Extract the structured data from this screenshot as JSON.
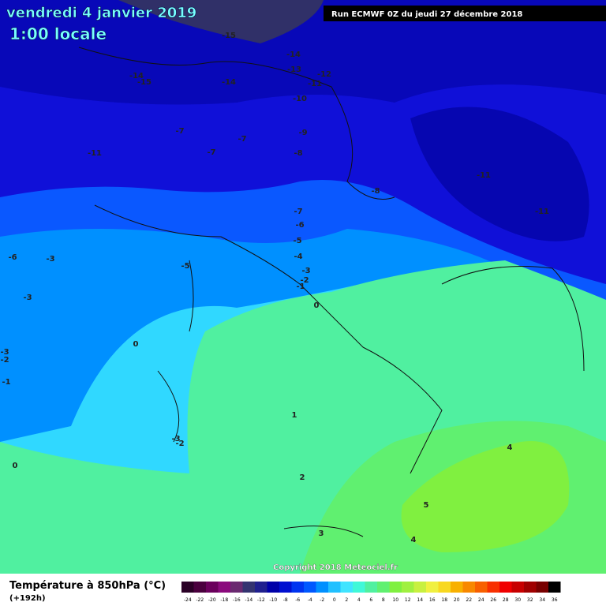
{
  "header": {
    "title": "vendredi 4 janvier 2019",
    "time": "1:00 locale",
    "run": "Run ECMWF 0Z du jeudi 27 décembre 2018"
  },
  "contour_labels": [
    -15,
    -14,
    -13,
    -12,
    -11,
    -14,
    -14,
    -15,
    -10,
    -9,
    -8,
    -7,
    -7,
    -7,
    -11,
    -11,
    -11,
    -8,
    -7,
    -6,
    -5,
    -4,
    -3,
    -2,
    -1,
    -6,
    -3,
    -5,
    -3,
    0,
    0,
    -3,
    -2,
    -1,
    1,
    -3,
    -2,
    0,
    2,
    4,
    5,
    3,
    4
  ],
  "copyright": "Copyright 2018 Meteociel.fr",
  "legend": {
    "title": "Température à 850hPa (°C)",
    "lead": "(+192h)",
    "ticks": [
      -24,
      -22,
      -20,
      -18,
      -16,
      -14,
      -12,
      -10,
      -8,
      -6,
      -4,
      -2,
      0,
      2,
      4,
      6,
      8,
      10,
      12,
      14,
      16,
      18,
      20,
      22,
      24,
      26,
      28,
      30,
      32,
      34,
      36
    ],
    "colors": [
      "#2a0026",
      "#4a003e",
      "#6a005c",
      "#8a0a7c",
      "#6a2a70",
      "#343470",
      "#20208e",
      "#0000a8",
      "#0010d0",
      "#0034f0",
      "#0058ff",
      "#0090ff",
      "#20c0ff",
      "#40e4ff",
      "#40f8d8",
      "#50f0a0",
      "#60f070",
      "#80f040",
      "#a0f040",
      "#c8f040",
      "#f0f040",
      "#f8d820",
      "#f8b000",
      "#f88800",
      "#f86000",
      "#f83000",
      "#f00000",
      "#c80000",
      "#a00000",
      "#780000",
      "#000000"
    ]
  }
}
